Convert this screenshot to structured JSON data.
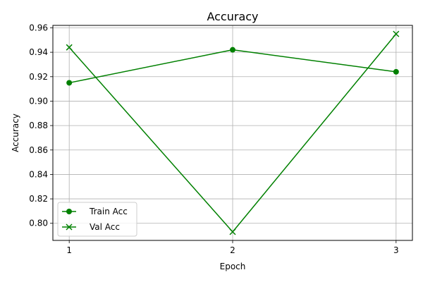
{
  "chart_data": {
    "type": "line",
    "title": "Accuracy",
    "xlabel": "Epoch",
    "ylabel": "Accuracy",
    "x": [
      1,
      2,
      3
    ],
    "x_ticks": [
      "1",
      "2",
      "3"
    ],
    "xlim": [
      0.9,
      3.1
    ],
    "ylim": [
      0.786,
      0.962
    ],
    "y_ticks": [
      "0.80",
      "0.82",
      "0.84",
      "0.86",
      "0.88",
      "0.90",
      "0.92",
      "0.94",
      "0.96"
    ],
    "grid": true,
    "legend_position": "lower-left",
    "series": [
      {
        "name": "Train Acc",
        "values": [
          0.915,
          0.942,
          0.924
        ],
        "color": "#008000",
        "marker": "circle"
      },
      {
        "name": "Val Acc",
        "values": [
          0.944,
          0.793,
          0.955
        ],
        "color": "#008000",
        "marker": "x"
      }
    ]
  }
}
